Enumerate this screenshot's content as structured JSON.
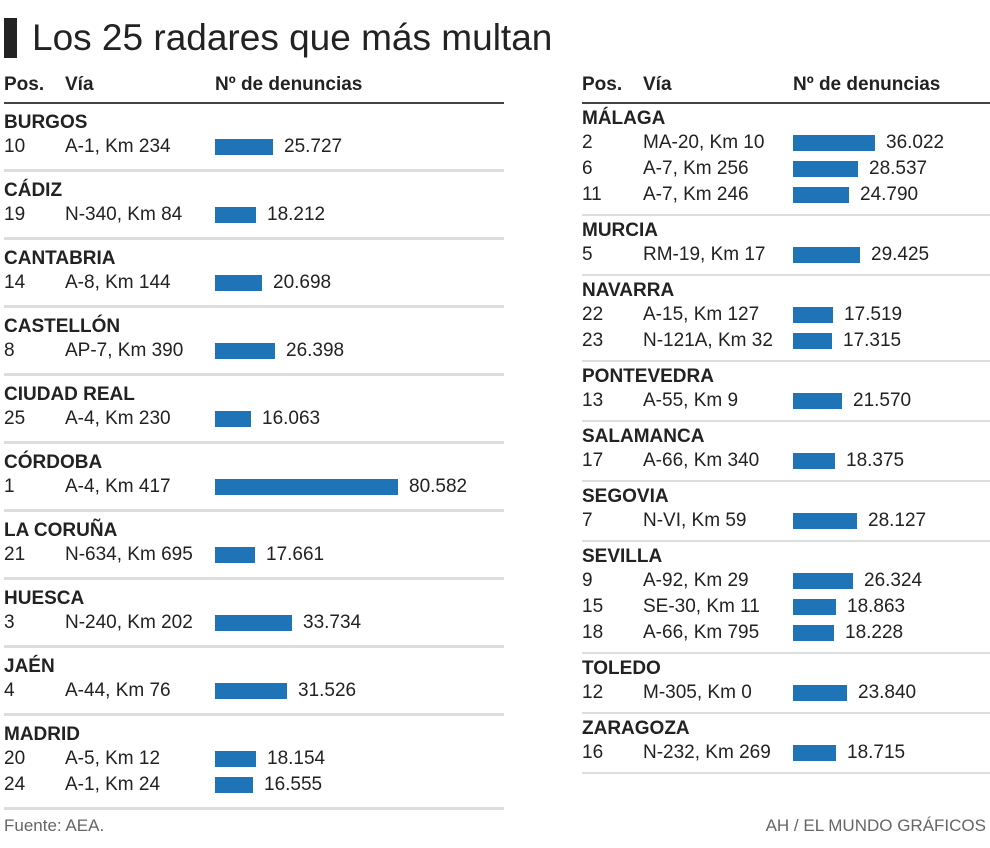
{
  "title": "Los 25 radares que más multan",
  "headers": {
    "pos": "Pos.",
    "via": "Vía",
    "denuncias": "Nº de denuncias"
  },
  "bar_color": "#1f73b7",
  "chart_data": {
    "type": "bar",
    "title": "Los 25 radares que más multan",
    "xlabel": "Nº de denuncias",
    "columns": [
      [
        {
          "province": "BURGOS",
          "rows": [
            {
              "pos": "10",
              "via": "A-1, Km 234",
              "value": 25727,
              "label": "25.727"
            }
          ]
        },
        {
          "province": "CÁDIZ",
          "rows": [
            {
              "pos": "19",
              "via": "N-340, Km 84",
              "value": 18212,
              "label": "18.212"
            }
          ]
        },
        {
          "province": "CANTABRIA",
          "rows": [
            {
              "pos": "14",
              "via": "A-8, Km 144",
              "value": 20698,
              "label": "20.698"
            }
          ]
        },
        {
          "province": "CASTELLÓN",
          "rows": [
            {
              "pos": "8",
              "via": "AP-7, Km 390",
              "value": 26398,
              "label": "26.398"
            }
          ]
        },
        {
          "province": "CIUDAD REAL",
          "rows": [
            {
              "pos": "25",
              "via": "A-4, Km 230",
              "value": 16063,
              "label": "16.063"
            }
          ]
        },
        {
          "province": "CÓRDOBA",
          "rows": [
            {
              "pos": "1",
              "via": "A-4, Km 417",
              "value": 80582,
              "label": "80.582"
            }
          ]
        },
        {
          "province": "LA CORUÑA",
          "rows": [
            {
              "pos": "21",
              "via": "N-634, Km 695",
              "value": 17661,
              "label": "17.661"
            }
          ]
        },
        {
          "province": "HUESCA",
          "rows": [
            {
              "pos": "3",
              "via": "N-240, Km 202",
              "value": 33734,
              "label": "33.734"
            }
          ]
        },
        {
          "province": "JAÉN",
          "rows": [
            {
              "pos": "4",
              "via": "A-44, Km 76",
              "value": 31526,
              "label": "31.526"
            }
          ]
        },
        {
          "province": "MADRID",
          "rows": [
            {
              "pos": "20",
              "via": "A-5, Km 12",
              "value": 18154,
              "label": "18.154"
            },
            {
              "pos": "24",
              "via": "A-1, Km 24",
              "value": 16555,
              "label": "16.555"
            }
          ]
        }
      ],
      [
        {
          "province": "MÁLAGA",
          "rows": [
            {
              "pos": "2",
              "via": "MA-20, Km 10",
              "value": 36022,
              "label": "36.022"
            },
            {
              "pos": "6",
              "via": "A-7, Km 256",
              "value": 28537,
              "label": "28.537"
            },
            {
              "pos": "11",
              "via": "A-7, Km 246",
              "value": 24790,
              "label": "24.790"
            }
          ]
        },
        {
          "province": "MURCIA",
          "rows": [
            {
              "pos": "5",
              "via": "RM-19, Km 17",
              "value": 29425,
              "label": "29.425"
            }
          ]
        },
        {
          "province": "NAVARRA",
          "rows": [
            {
              "pos": "22",
              "via": "A-15, Km 127",
              "value": 17519,
              "label": "17.519"
            },
            {
              "pos": "23",
              "via": "N-121A, Km 32",
              "value": 17315,
              "label": "17.315"
            }
          ]
        },
        {
          "province": "PONTEVEDRA",
          "rows": [
            {
              "pos": "13",
              "via": "A-55, Km 9",
              "value": 21570,
              "label": "21.570"
            }
          ]
        },
        {
          "province": "SALAMANCA",
          "rows": [
            {
              "pos": "17",
              "via": "A-66, Km 340",
              "value": 18375,
              "label": "18.375"
            }
          ]
        },
        {
          "province": "SEGOVIA",
          "rows": [
            {
              "pos": "7",
              "via": "N-VI, Km 59",
              "value": 28127,
              "label": "28.127"
            }
          ]
        },
        {
          "province": "SEVILLA",
          "rows": [
            {
              "pos": "9",
              "via": "A-92, Km 29",
              "value": 26324,
              "label": "26.324"
            },
            {
              "pos": "15",
              "via": "SE-30, Km 11",
              "value": 18863,
              "label": "18.863"
            },
            {
              "pos": "18",
              "via": "A-66, Km 795",
              "value": 18228,
              "label": "18.228"
            }
          ]
        },
        {
          "province": "TOLEDO",
          "rows": [
            {
              "pos": "12",
              "via": "M-305, Km 0",
              "value": 23840,
              "label": "23.840"
            }
          ]
        },
        {
          "province": "ZARAGOZA",
          "rows": [
            {
              "pos": "16",
              "via": "N-232, Km 269",
              "value": 18715,
              "label": "18.715"
            }
          ]
        }
      ]
    ]
  },
  "footer": {
    "source": "Fuente: AEA.",
    "credit": "AH / EL MUNDO GRÁFICOS"
  }
}
